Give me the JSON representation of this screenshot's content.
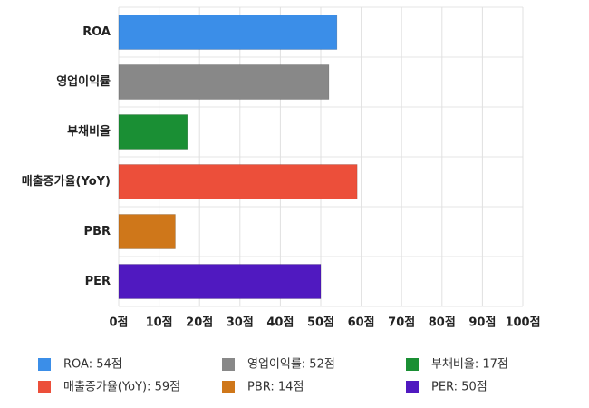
{
  "chart_data": {
    "type": "bar",
    "orientation": "horizontal",
    "categories": [
      "ROA",
      "영업이익률",
      "부채비율",
      "매출증가율(YoY)",
      "PBR",
      "PER"
    ],
    "values": [
      54,
      52,
      17,
      59,
      14,
      50
    ],
    "colors": [
      "#3b8ee8",
      "#888888",
      "#1a8f34",
      "#ec4f3a",
      "#cf771a",
      "#5019c0"
    ],
    "legend_labels": [
      "ROA: 54점",
      "영업이익률: 52점",
      "부채비율: 17점",
      "매출증가율(YoY): 59점",
      "PBR: 14점",
      "PER: 50점"
    ],
    "xlim": [
      0,
      100
    ],
    "xticks": [
      {
        "value": 0,
        "label": "0점"
      },
      {
        "value": 10,
        "label": "10점"
      },
      {
        "value": 20,
        "label": "20점"
      },
      {
        "value": 30,
        "label": "30점"
      },
      {
        "value": 40,
        "label": "40점"
      },
      {
        "value": 50,
        "label": "50점"
      },
      {
        "value": 60,
        "label": "60점"
      },
      {
        "value": 70,
        "label": "70점"
      },
      {
        "value": 80,
        "label": "80점"
      },
      {
        "value": 90,
        "label": "90점"
      },
      {
        "value": 100,
        "label": "100점"
      }
    ],
    "grid": true
  }
}
